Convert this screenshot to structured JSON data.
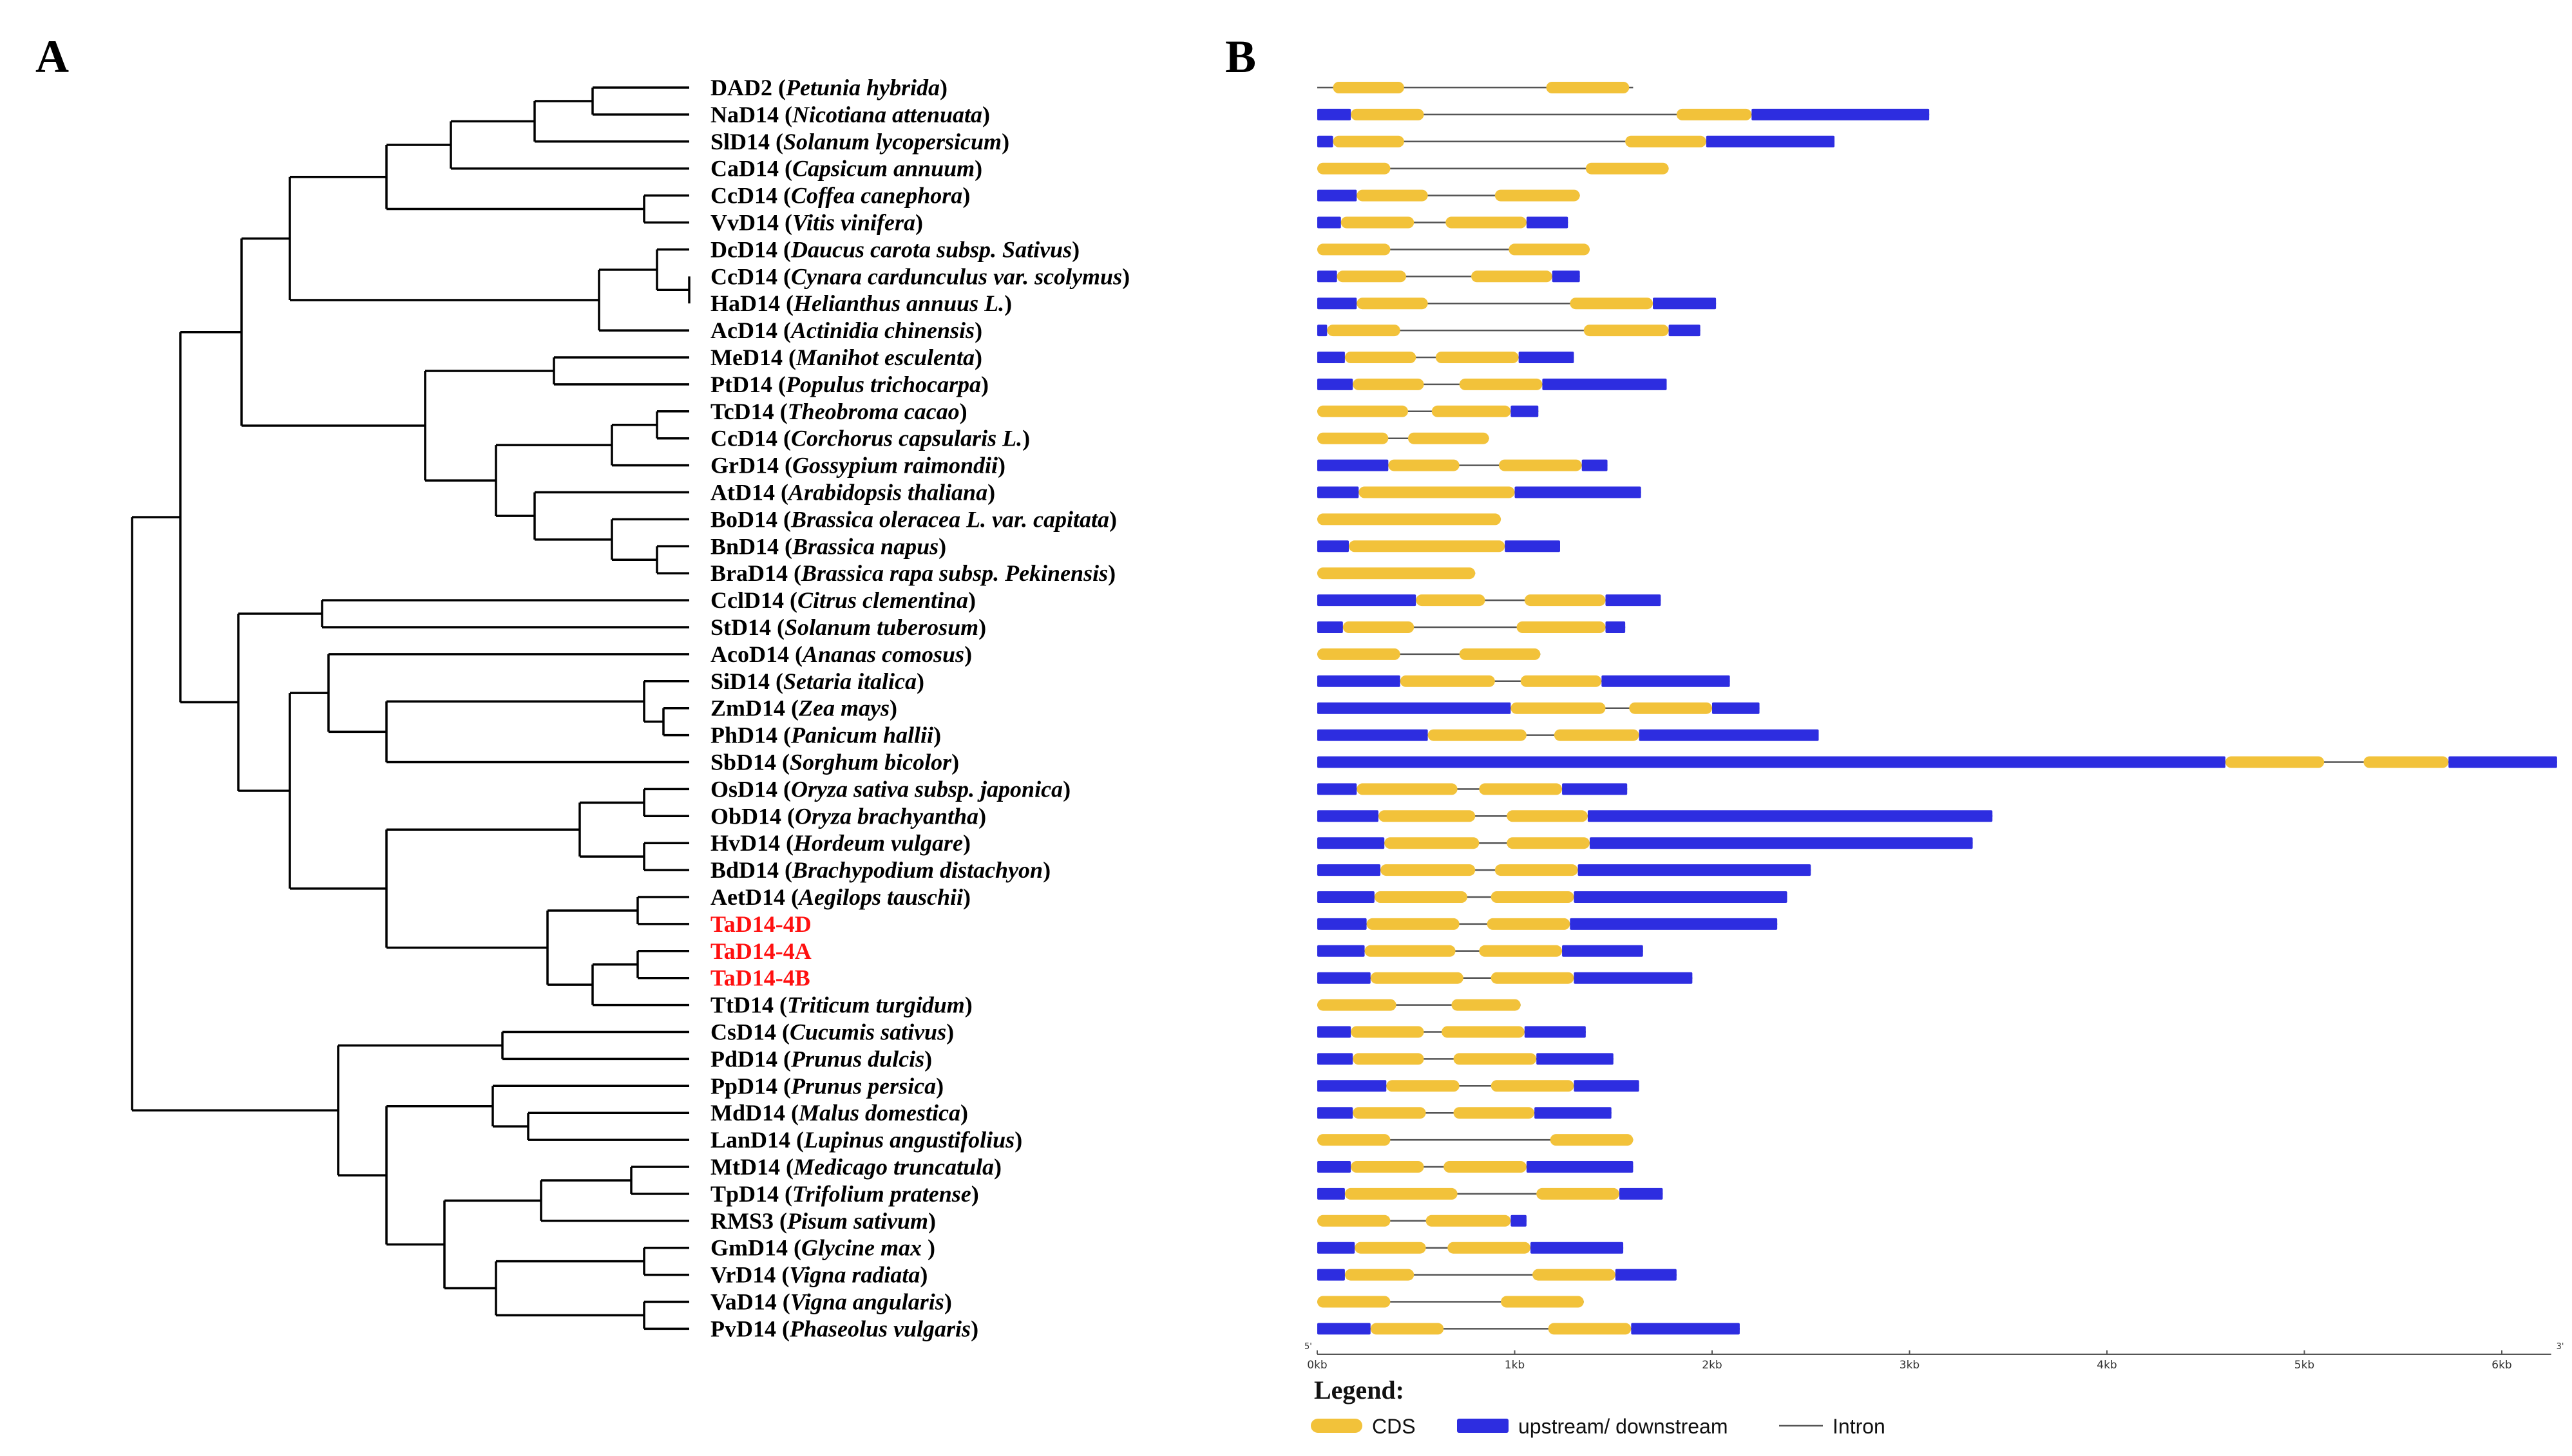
{
  "panels": {
    "a": "A",
    "b": "B"
  },
  "colors": {
    "cds": "#f2c23a",
    "utr": "#2d2de0",
    "intron": "#555555",
    "highlight": "#ff1010"
  },
  "axis": {
    "ticks": [
      "0kb",
      "1kb",
      "2kb",
      "3kb",
      "4kb",
      "5kb",
      "6kb"
    ],
    "left_end": "5'",
    "right_end": "3'",
    "max_kb": 6.25
  },
  "legend": {
    "title": "Legend:",
    "cds": "CDS",
    "utr": "upstream/ downstream",
    "intron": "Intron"
  },
  "genes": [
    {
      "name": "DAD2",
      "species": "Petunia hybrida",
      "len": 1.6,
      "segs": [
        [
          "c",
          0.08,
          0.44
        ],
        [
          "c",
          1.16,
          1.58
        ]
      ]
    },
    {
      "name": "NaD14",
      "species": "Nicotiana attenuata",
      "len": 3.1,
      "segs": [
        [
          "u",
          0,
          0.17
        ],
        [
          "c",
          0.17,
          0.54
        ],
        [
          "c",
          1.82,
          2.2
        ],
        [
          "u",
          2.2,
          3.1
        ]
      ]
    },
    {
      "name": "SlD14",
      "species": "Solanum lycopersicum",
      "len": 2.62,
      "segs": [
        [
          "u",
          0,
          0.08
        ],
        [
          "c",
          0.08,
          0.44
        ],
        [
          "c",
          1.56,
          1.97
        ],
        [
          "u",
          1.97,
          2.62
        ]
      ]
    },
    {
      "name": "CaD14",
      "species": "Capsicum annuum",
      "len": 1.78,
      "segs": [
        [
          "c",
          0,
          0.37
        ],
        [
          "c",
          1.36,
          1.78
        ]
      ]
    },
    {
      "name": "CcD14",
      "species": "Coffea canephora",
      "len": 1.33,
      "segs": [
        [
          "u",
          0,
          0.2
        ],
        [
          "c",
          0.2,
          0.56
        ],
        [
          "c",
          0.9,
          1.33
        ]
      ]
    },
    {
      "name": "VvD14",
      "species": "Vitis vinifera",
      "len": 1.27,
      "segs": [
        [
          "u",
          0,
          0.12
        ],
        [
          "c",
          0.12,
          0.49
        ],
        [
          "c",
          0.65,
          1.06
        ],
        [
          "u",
          1.06,
          1.27
        ]
      ]
    },
    {
      "name": "DcD14",
      "species": "Daucus carota subsp. Sativus",
      "len": 1.38,
      "segs": [
        [
          "c",
          0,
          0.37
        ],
        [
          "c",
          0.97,
          1.38
        ]
      ]
    },
    {
      "name": "CcD14",
      "species": "Cynara cardunculus var. scolymus",
      "len": 1.33,
      "segs": [
        [
          "u",
          0,
          0.1
        ],
        [
          "c",
          0.1,
          0.45
        ],
        [
          "c",
          0.78,
          1.19
        ],
        [
          "u",
          1.19,
          1.33
        ]
      ]
    },
    {
      "name": "HaD14",
      "species": "Helianthus annuus L.",
      "len": 2.02,
      "segs": [
        [
          "u",
          0,
          0.2
        ],
        [
          "c",
          0.2,
          0.56
        ],
        [
          "c",
          1.28,
          1.7
        ],
        [
          "u",
          1.7,
          2.02
        ]
      ]
    },
    {
      "name": "AcD14",
      "species": "Actinidia chinensis",
      "len": 1.94,
      "segs": [
        [
          "u",
          0,
          0.05
        ],
        [
          "c",
          0.05,
          0.42
        ],
        [
          "c",
          1.35,
          1.78
        ],
        [
          "u",
          1.78,
          1.94
        ]
      ]
    },
    {
      "name": "MeD14",
      "species": "Manihot esculenta",
      "len": 1.3,
      "segs": [
        [
          "u",
          0,
          0.14
        ],
        [
          "c",
          0.14,
          0.5
        ],
        [
          "c",
          0.6,
          1.02
        ],
        [
          "u",
          1.02,
          1.3
        ]
      ]
    },
    {
      "name": "PtD14",
      "species": "Populus trichocarpa",
      "len": 1.77,
      "segs": [
        [
          "u",
          0,
          0.18
        ],
        [
          "c",
          0.18,
          0.54
        ],
        [
          "c",
          0.72,
          1.14
        ],
        [
          "u",
          1.14,
          1.77
        ]
      ]
    },
    {
      "name": "TcD14",
      "species": "Theobroma cacao",
      "len": 1.12,
      "segs": [
        [
          "c",
          0,
          0.46
        ],
        [
          "c",
          0.58,
          0.98
        ],
        [
          "u",
          0.98,
          1.12
        ]
      ]
    },
    {
      "name": "CcD14",
      "species": "Corchorus capsularis L.",
      "len": 0.87,
      "segs": [
        [
          "c",
          0,
          0.36
        ],
        [
          "c",
          0.46,
          0.87
        ]
      ]
    },
    {
      "name": "GrD14",
      "species": "Gossypium raimondii",
      "len": 1.47,
      "segs": [
        [
          "u",
          0,
          0.36
        ],
        [
          "c",
          0.36,
          0.72
        ],
        [
          "c",
          0.92,
          1.34
        ],
        [
          "u",
          1.34,
          1.47
        ]
      ]
    },
    {
      "name": "AtD14",
      "species": "Arabidopsis thaliana",
      "len": 1.64,
      "segs": [
        [
          "u",
          0,
          0.21
        ],
        [
          "c",
          0.21,
          1.0
        ],
        [
          "u",
          1.0,
          1.64
        ]
      ]
    },
    {
      "name": "BoD14",
      "species": "Brassica oleracea L. var. capitata",
      "len": 0.93,
      "segs": [
        [
          "c",
          0,
          0.93
        ]
      ]
    },
    {
      "name": "BnD14",
      "species": "Brassica napus",
      "len": 1.23,
      "segs": [
        [
          "u",
          0,
          0.16
        ],
        [
          "c",
          0.16,
          0.95
        ],
        [
          "u",
          0.95,
          1.23
        ]
      ]
    },
    {
      "name": "BraD14",
      "species": "Brassica rapa subsp. Pekinensis",
      "len": 0.8,
      "segs": [
        [
          "c",
          0,
          0.8
        ]
      ]
    },
    {
      "name": "CclD14",
      "species": "Citrus clementina",
      "len": 1.74,
      "segs": [
        [
          "u",
          0,
          0.5
        ],
        [
          "c",
          0.5,
          0.85
        ],
        [
          "c",
          1.05,
          1.46
        ],
        [
          "u",
          1.46,
          1.74
        ]
      ]
    },
    {
      "name": "StD14",
      "species": "Solanum tuberosum",
      "len": 1.56,
      "segs": [
        [
          "u",
          0,
          0.13
        ],
        [
          "c",
          0.13,
          0.49
        ],
        [
          "c",
          1.01,
          1.46
        ],
        [
          "u",
          1.46,
          1.56
        ]
      ]
    },
    {
      "name": "AcoD14",
      "species": "Ananas comosus",
      "len": 1.13,
      "segs": [
        [
          "c",
          0,
          0.42
        ],
        [
          "c",
          0.72,
          1.13
        ]
      ]
    },
    {
      "name": "SiD14",
      "species": "Setaria italica",
      "len": 2.09,
      "segs": [
        [
          "u",
          0,
          0.42
        ],
        [
          "c",
          0.42,
          0.9
        ],
        [
          "c",
          1.03,
          1.44
        ],
        [
          "u",
          1.44,
          2.09
        ]
      ]
    },
    {
      "name": "ZmD14",
      "species": "Zea mays",
      "len": 2.24,
      "segs": [
        [
          "u",
          0,
          0.98
        ],
        [
          "c",
          0.98,
          1.46
        ],
        [
          "c",
          1.58,
          2.0
        ],
        [
          "u",
          2.0,
          2.24
        ]
      ]
    },
    {
      "name": "PhD14",
      "species": "Panicum hallii",
      "len": 2.54,
      "segs": [
        [
          "u",
          0,
          0.56
        ],
        [
          "c",
          0.56,
          1.06
        ],
        [
          "c",
          1.2,
          1.63
        ],
        [
          "u",
          1.63,
          2.54
        ]
      ]
    },
    {
      "name": "SbD14",
      "species": "Sorghum bicolor",
      "len": 6.28,
      "segs": [
        [
          "u",
          0,
          4.6
        ],
        [
          "c",
          4.6,
          5.1
        ],
        [
          "c",
          5.3,
          5.73
        ],
        [
          "u",
          5.73,
          6.28
        ]
      ]
    },
    {
      "name": "OsD14",
      "species": "Oryza sativa subsp. japonica",
      "len": 1.57,
      "segs": [
        [
          "u",
          0,
          0.2
        ],
        [
          "c",
          0.2,
          0.71
        ],
        [
          "c",
          0.82,
          1.24
        ],
        [
          "u",
          1.24,
          1.57
        ]
      ]
    },
    {
      "name": "ObD14",
      "species": "Oryza brachyantha",
      "len": 3.42,
      "segs": [
        [
          "u",
          0,
          0.31
        ],
        [
          "c",
          0.31,
          0.8
        ],
        [
          "c",
          0.96,
          1.37
        ],
        [
          "u",
          1.37,
          3.42
        ]
      ]
    },
    {
      "name": "HvD14",
      "species": "Hordeum vulgare",
      "len": 3.32,
      "segs": [
        [
          "u",
          0,
          0.34
        ],
        [
          "c",
          0.34,
          0.82
        ],
        [
          "c",
          0.96,
          1.38
        ],
        [
          "u",
          1.38,
          3.32
        ]
      ]
    },
    {
      "name": "BdD14",
      "species": "Brachypodium distachyon",
      "len": 2.5,
      "segs": [
        [
          "u",
          0,
          0.32
        ],
        [
          "c",
          0.32,
          0.8
        ],
        [
          "c",
          0.9,
          1.32
        ],
        [
          "u",
          1.32,
          2.5
        ]
      ]
    },
    {
      "name": "AetD14",
      "species": "Aegilops tauschii",
      "len": 2.38,
      "segs": [
        [
          "u",
          0,
          0.29
        ],
        [
          "c",
          0.29,
          0.76
        ],
        [
          "c",
          0.88,
          1.3
        ],
        [
          "u",
          1.3,
          2.38
        ]
      ]
    },
    {
      "name": "TaD14-4D",
      "species": "",
      "highlight": true,
      "len": 2.33,
      "segs": [
        [
          "u",
          0,
          0.25
        ],
        [
          "c",
          0.25,
          0.72
        ],
        [
          "c",
          0.86,
          1.28
        ],
        [
          "u",
          1.28,
          2.33
        ]
      ]
    },
    {
      "name": "TaD14-4A",
      "species": "",
      "highlight": true,
      "len": 1.65,
      "segs": [
        [
          "u",
          0,
          0.24
        ],
        [
          "c",
          0.24,
          0.7
        ],
        [
          "c",
          0.82,
          1.24
        ],
        [
          "u",
          1.24,
          1.65
        ]
      ]
    },
    {
      "name": "TaD14-4B",
      "species": "",
      "highlight": true,
      "len": 1.9,
      "segs": [
        [
          "u",
          0,
          0.27
        ],
        [
          "c",
          0.27,
          0.74
        ],
        [
          "c",
          0.88,
          1.3
        ],
        [
          "u",
          1.3,
          1.9
        ]
      ]
    },
    {
      "name": "TtD14",
      "species": "Triticum turgidum",
      "len": 1.03,
      "segs": [
        [
          "c",
          0,
          0.4
        ],
        [
          "c",
          0.68,
          1.03
        ]
      ]
    },
    {
      "name": "CsD14",
      "species": "Cucumis sativus",
      "len": 1.36,
      "segs": [
        [
          "u",
          0,
          0.17
        ],
        [
          "c",
          0.17,
          0.54
        ],
        [
          "c",
          0.63,
          1.05
        ],
        [
          "u",
          1.05,
          1.36
        ]
      ]
    },
    {
      "name": "PdD14",
      "species": "Prunus dulcis",
      "len": 1.5,
      "segs": [
        [
          "u",
          0,
          0.18
        ],
        [
          "c",
          0.18,
          0.54
        ],
        [
          "c",
          0.69,
          1.11
        ],
        [
          "u",
          1.11,
          1.5
        ]
      ]
    },
    {
      "name": "PpD14",
      "species": "Prunus persica",
      "len": 1.63,
      "segs": [
        [
          "u",
          0,
          0.35
        ],
        [
          "c",
          0.35,
          0.72
        ],
        [
          "c",
          0.88,
          1.3
        ],
        [
          "u",
          1.3,
          1.63
        ]
      ]
    },
    {
      "name": "MdD14",
      "species": "Malus domestica",
      "len": 1.49,
      "segs": [
        [
          "u",
          0,
          0.18
        ],
        [
          "c",
          0.18,
          0.55
        ],
        [
          "c",
          0.69,
          1.1
        ],
        [
          "u",
          1.1,
          1.49
        ]
      ]
    },
    {
      "name": "LanD14",
      "species": "Lupinus angustifolius",
      "len": 1.6,
      "segs": [
        [
          "c",
          0,
          0.37
        ],
        [
          "c",
          1.18,
          1.6
        ]
      ]
    },
    {
      "name": "MtD14",
      "species": "Medicago truncatula",
      "len": 1.6,
      "segs": [
        [
          "u",
          0,
          0.17
        ],
        [
          "c",
          0.17,
          0.54
        ],
        [
          "c",
          0.64,
          1.06
        ],
        [
          "u",
          1.06,
          1.6
        ]
      ]
    },
    {
      "name": "TpD14",
      "species": "Trifolium pratense",
      "len": 1.75,
      "segs": [
        [
          "u",
          0,
          0.14
        ],
        [
          "c",
          0.14,
          0.71
        ],
        [
          "c",
          1.11,
          1.53
        ],
        [
          "u",
          1.53,
          1.75
        ]
      ]
    },
    {
      "name": "RMS3",
      "species": "Pisum sativum",
      "len": 1.06,
      "segs": [
        [
          "c",
          0,
          0.37
        ],
        [
          "c",
          0.55,
          0.98
        ],
        [
          "u",
          0.98,
          1.06
        ]
      ]
    },
    {
      "name": "GmD14",
      "species": "Glycine max ",
      "len": 1.55,
      "segs": [
        [
          "u",
          0,
          0.19
        ],
        [
          "c",
          0.19,
          0.55
        ],
        [
          "c",
          0.66,
          1.08
        ],
        [
          "u",
          1.08,
          1.55
        ]
      ]
    },
    {
      "name": "VrD14",
      "species": "Vigna radiata",
      "len": 1.82,
      "segs": [
        [
          "u",
          0,
          0.14
        ],
        [
          "c",
          0.14,
          0.49
        ],
        [
          "c",
          1.09,
          1.51
        ],
        [
          "u",
          1.51,
          1.82
        ]
      ]
    },
    {
      "name": "VaD14",
      "species": "Vigna angularis",
      "len": 1.35,
      "segs": [
        [
          "c",
          0,
          0.37
        ],
        [
          "c",
          0.93,
          1.35
        ]
      ]
    },
    {
      "name": "PvD14",
      "species": "Phaseolus vulgaris",
      "len": 2.14,
      "segs": [
        [
          "u",
          0,
          0.27
        ],
        [
          "c",
          0.27,
          0.64
        ],
        [
          "c",
          1.17,
          1.59
        ],
        [
          "u",
          1.59,
          2.14
        ]
      ]
    }
  ]
}
